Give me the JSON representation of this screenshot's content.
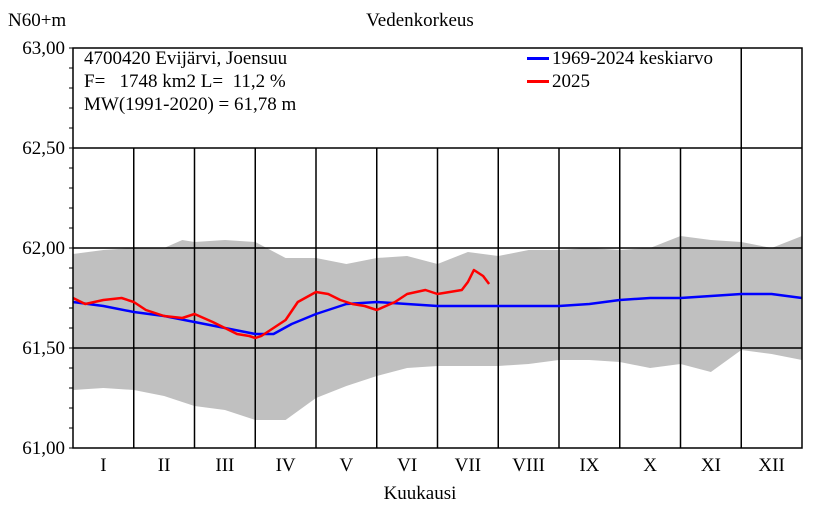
{
  "chart_data": {
    "type": "area",
    "title": "Vedenkorkeus",
    "ylabel": "N60+m",
    "xlabel": "Kuukausi",
    "ylim": [
      61.0,
      63.0
    ],
    "yticks": [
      "61,00",
      "61,50",
      "62,00",
      "62,50",
      "63,00"
    ],
    "ytick_values": [
      61.0,
      61.5,
      62.0,
      62.5,
      63.0
    ],
    "categories": [
      "I",
      "II",
      "III",
      "IV",
      "V",
      "VI",
      "VII",
      "VIII",
      "IX",
      "X",
      "XI",
      "XII"
    ],
    "xlim": [
      0,
      12
    ],
    "grid": true,
    "info": {
      "station": "4700420 Evijärvi, Joensuu",
      "area": "F=   1748 km2 L=  11,2 %",
      "mean": "MW(1991-2020) = 61,78 m"
    },
    "legend_position": "top-right",
    "band": {
      "x": [
        0,
        0.5,
        1.0,
        1.5,
        1.8,
        2.0,
        2.5,
        3.0,
        3.5,
        4.0,
        4.5,
        5.0,
        5.5,
        6.0,
        6.5,
        7.0,
        7.5,
        8.0,
        8.5,
        9.0,
        9.5,
        10.0,
        10.5,
        11.0,
        11.5,
        12.0
      ],
      "high": [
        61.97,
        61.99,
        62.0,
        62.0,
        62.04,
        62.03,
        62.04,
        62.03,
        61.95,
        61.95,
        61.92,
        61.95,
        61.96,
        61.92,
        61.98,
        61.96,
        61.99,
        61.99,
        62.0,
        61.99,
        62.0,
        62.06,
        62.04,
        62.03,
        62.0,
        62.06
      ],
      "low": [
        61.29,
        61.3,
        61.29,
        61.26,
        61.23,
        61.21,
        61.19,
        61.14,
        61.14,
        61.25,
        61.31,
        61.36,
        61.4,
        61.41,
        61.41,
        61.41,
        61.42,
        61.44,
        61.44,
        61.43,
        61.4,
        61.42,
        61.38,
        61.49,
        61.47,
        61.44
      ]
    },
    "series": [
      {
        "name": "1969-2024 keskiarvo",
        "color": "#0000ff",
        "x": [
          0,
          0.5,
          1.0,
          1.5,
          2.0,
          2.5,
          3.0,
          3.3,
          3.6,
          4.0,
          4.5,
          5.0,
          5.5,
          6.0,
          6.5,
          7.0,
          7.5,
          8.0,
          8.5,
          9.0,
          9.5,
          10.0,
          10.5,
          11.0,
          11.5,
          12.0
        ],
        "values": [
          61.73,
          61.71,
          61.68,
          61.66,
          61.63,
          61.6,
          61.57,
          61.57,
          61.62,
          61.67,
          61.72,
          61.73,
          61.72,
          61.71,
          61.71,
          61.71,
          61.71,
          61.71,
          61.72,
          61.74,
          61.75,
          61.75,
          61.76,
          61.77,
          61.77,
          61.75
        ]
      },
      {
        "name": "2025",
        "color": "#ff0000",
        "x": [
          0,
          0.2,
          0.5,
          0.8,
          1.0,
          1.2,
          1.5,
          1.8,
          2.0,
          2.3,
          2.5,
          2.7,
          2.9,
          3.0,
          3.1,
          3.3,
          3.5,
          3.7,
          4.0,
          4.2,
          4.4,
          4.6,
          4.8,
          5.0,
          5.3,
          5.5,
          5.8,
          6.0,
          6.2,
          6.4,
          6.5,
          6.6,
          6.75,
          6.85
        ],
        "values": [
          61.75,
          61.72,
          61.74,
          61.75,
          61.73,
          61.69,
          61.66,
          61.65,
          61.67,
          61.63,
          61.6,
          61.57,
          61.56,
          61.55,
          61.56,
          61.6,
          61.64,
          61.73,
          61.78,
          61.77,
          61.74,
          61.72,
          61.71,
          61.69,
          61.73,
          61.77,
          61.79,
          61.77,
          61.78,
          61.79,
          61.83,
          61.89,
          61.86,
          61.82
        ]
      }
    ]
  }
}
